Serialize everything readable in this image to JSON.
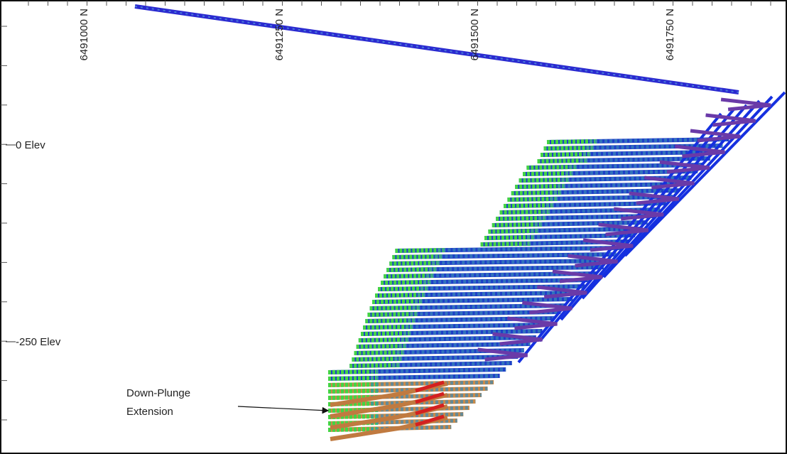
{
  "axis_labels": {
    "northings": [
      "6491000 N",
      "6491250 N",
      "6491500 N",
      "6491750 N"
    ],
    "elevations": [
      "0 Elev",
      "-250 Elev"
    ]
  },
  "annotation": {
    "lines": [
      "Down-Plunge",
      "Extension"
    ]
  }
}
